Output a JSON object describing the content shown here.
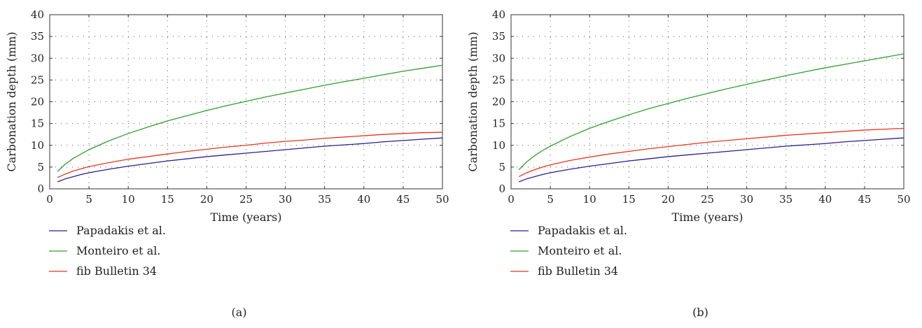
{
  "chart_data": [
    {
      "type": "line",
      "caption": "(a)",
      "xlabel": "Time (years)",
      "ylabel": "Carbonation depth (mm)",
      "xlim": [
        0,
        50
      ],
      "ylim": [
        0,
        40
      ],
      "xticks": [
        0,
        5,
        10,
        15,
        20,
        25,
        30,
        35,
        40,
        45,
        50
      ],
      "yticks": [
        0,
        5,
        10,
        15,
        20,
        25,
        30,
        35,
        40
      ],
      "grid": true,
      "legend_position": "below",
      "x": [
        1,
        2,
        3,
        4,
        5,
        7.5,
        10,
        12.5,
        15,
        17.5,
        20,
        22.5,
        25,
        27.5,
        30,
        32.5,
        35,
        37.5,
        40,
        42.5,
        45,
        47.5,
        50
      ],
      "series": [
        {
          "name": "Papadakis et al.",
          "color": "#2a1f8f",
          "values": [
            1.6,
            2.3,
            2.8,
            3.3,
            3.7,
            4.5,
            5.2,
            5.8,
            6.4,
            6.9,
            7.4,
            7.8,
            8.2,
            8.6,
            9.0,
            9.4,
            9.8,
            10.1,
            10.4,
            10.8,
            11.1,
            11.4,
            11.7
          ]
        },
        {
          "name": "Monteiro et al.",
          "color": "#2ca02c",
          "values": [
            4.0,
            5.7,
            7.0,
            8.0,
            9.0,
            11.0,
            12.7,
            14.2,
            15.6,
            16.8,
            18.0,
            19.1,
            20.1,
            21.1,
            22.0,
            22.9,
            23.8,
            24.6,
            25.4,
            26.2,
            27.0,
            27.7,
            28.4
          ]
        },
        {
          "name": "fib Bulletin 34",
          "color": "#e8351f",
          "values": [
            2.6,
            3.4,
            4.1,
            4.6,
            5.1,
            6.0,
            6.8,
            7.4,
            8.0,
            8.6,
            9.1,
            9.6,
            10.0,
            10.5,
            10.9,
            11.2,
            11.6,
            11.9,
            12.2,
            12.5,
            12.7,
            12.9,
            13.0
          ]
        }
      ]
    },
    {
      "type": "line",
      "caption": "(b)",
      "xlabel": "Time (years)",
      "ylabel": "Carbonation depth (mm)",
      "xlim": [
        0,
        50
      ],
      "ylim": [
        0,
        40
      ],
      "xticks": [
        0,
        5,
        10,
        15,
        20,
        25,
        30,
        35,
        40,
        45,
        50
      ],
      "yticks": [
        0,
        5,
        10,
        15,
        20,
        25,
        30,
        35,
        40
      ],
      "grid": true,
      "legend_position": "below",
      "x": [
        1,
        2,
        3,
        4,
        5,
        7.5,
        10,
        12.5,
        15,
        17.5,
        20,
        22.5,
        25,
        27.5,
        30,
        32.5,
        35,
        37.5,
        40,
        42.5,
        45,
        47.5,
        50
      ],
      "series": [
        {
          "name": "Papadakis et al.",
          "color": "#2a1f8f",
          "values": [
            1.6,
            2.3,
            2.8,
            3.3,
            3.7,
            4.5,
            5.2,
            5.8,
            6.4,
            6.9,
            7.4,
            7.8,
            8.2,
            8.6,
            9.0,
            9.4,
            9.8,
            10.1,
            10.4,
            10.8,
            11.1,
            11.4,
            11.7
          ]
        },
        {
          "name": "Monteiro et al.",
          "color": "#2ca02c",
          "values": [
            4.4,
            6.2,
            7.6,
            8.8,
            9.8,
            12.0,
            13.9,
            15.5,
            17.0,
            18.4,
            19.6,
            20.8,
            21.9,
            23.0,
            24.0,
            25.0,
            26.0,
            26.9,
            27.8,
            28.6,
            29.4,
            30.2,
            31.0
          ]
        },
        {
          "name": "fib Bulletin 34",
          "color": "#e8351f",
          "values": [
            2.8,
            3.7,
            4.4,
            5.0,
            5.5,
            6.5,
            7.3,
            8.0,
            8.6,
            9.2,
            9.7,
            10.2,
            10.7,
            11.1,
            11.5,
            11.9,
            12.3,
            12.6,
            12.9,
            13.2,
            13.5,
            13.7,
            13.9
          ]
        }
      ]
    }
  ]
}
